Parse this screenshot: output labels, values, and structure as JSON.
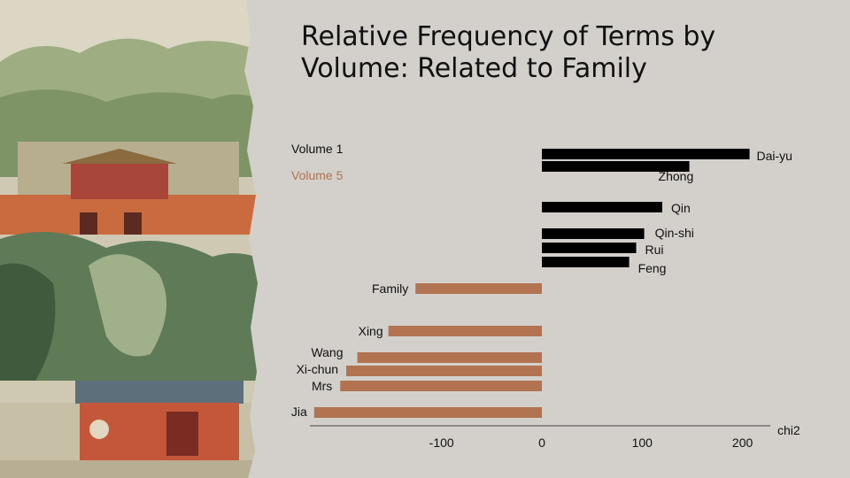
{
  "chart_data": {
    "type": "bar",
    "orientation": "horizontal",
    "title": "Relative Frequency of Terms by Volume: Related to Family",
    "xlabel": "chi2",
    "ylabel": "",
    "xlim": [
      -225,
      225
    ],
    "xticks": [
      -100,
      0,
      100,
      200
    ],
    "grid": false,
    "legend": "left",
    "colors": {
      "Volume 1": "#000000",
      "Volume 5": "#b27350"
    },
    "series": [
      {
        "name": "Volume 1",
        "labels": [
          "Dai-yu",
          "Zhong",
          "Qin",
          "Qin-shi",
          "Rui",
          "Feng"
        ],
        "values": [
          207,
          147,
          120,
          102,
          94,
          87
        ]
      },
      {
        "name": "Volume 5",
        "labels": [
          "Family",
          "Xing",
          "Wang",
          "Xi-chun",
          "Mrs",
          "Jia"
        ],
        "values": [
          -126,
          -153,
          -184,
          -195,
          -201,
          -227
        ]
      }
    ]
  }
}
